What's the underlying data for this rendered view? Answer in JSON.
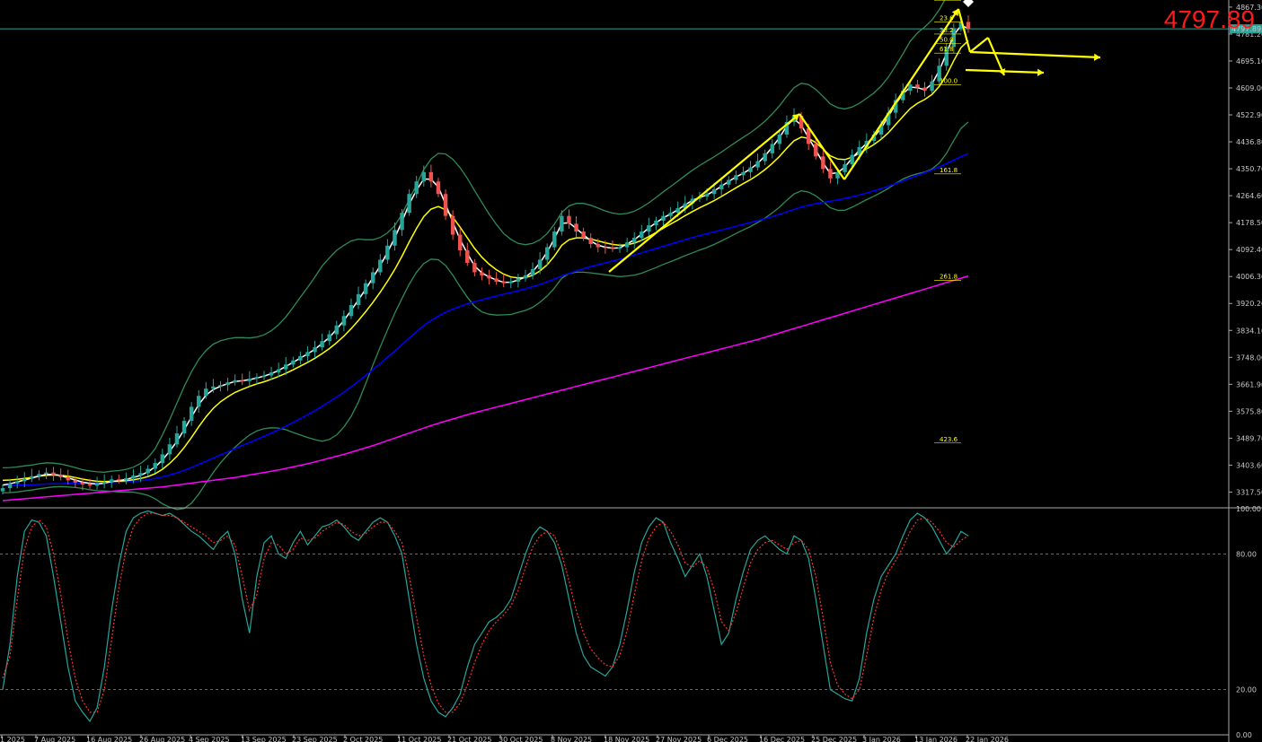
{
  "big_price": "4797.89",
  "current_price_tag": "4797.89",
  "chart_data": [
    {
      "type": "candlestick",
      "ylim": [
        3270,
        4890
      ],
      "y_ticks": [
        "4867.30",
        "4781.20",
        "4695.10",
        "4609.00",
        "4522.90",
        "4436.80",
        "4350.70",
        "4264.60",
        "4178.50",
        "4092.40",
        "4006.30",
        "3920.20",
        "3834.10",
        "3748.00",
        "3661.90",
        "3575.80",
        "3489.70",
        "3403.60",
        "3317.50"
      ],
      "x_ticks": [
        "1 2025",
        "7 Aug 2025",
        "16 Aug 2025",
        "26 Aug 2025",
        "4 Sep 2025",
        "13 Sep 2025",
        "23 Sep 2025",
        "2 Oct 2025",
        "11 Oct 2025",
        "21 Oct 2025",
        "30 Oct 2025",
        "8 Nov 2025",
        "18 Nov 2025",
        "27 Nov 2025",
        "6 Dec 2025",
        "16 Dec 2025",
        "25 Dec 2025",
        "3 Jan 2026",
        "13 Jan 2026",
        "22 Jan 2026"
      ],
      "current_price": 4797.89,
      "close": [
        3330,
        3345,
        3352,
        3360,
        3368,
        3375,
        3380,
        3372,
        3365,
        3355,
        3348,
        3342,
        3338,
        3345,
        3350,
        3358,
        3355,
        3362,
        3370,
        3378,
        3392,
        3410,
        3438,
        3470,
        3505,
        3545,
        3590,
        3625,
        3648,
        3655,
        3660,
        3668,
        3675,
        3672,
        3680,
        3685,
        3690,
        3700,
        3710,
        3725,
        3738,
        3752,
        3765,
        3780,
        3800,
        3822,
        3850,
        3880,
        3915,
        3950,
        3985,
        4020,
        4060,
        4105,
        4155,
        4210,
        4270,
        4310,
        4340,
        4310,
        4270,
        4200,
        4140,
        4090,
        4050,
        4020,
        4010,
        4000,
        3990,
        3985,
        3990,
        4000,
        4010,
        4030,
        4060,
        4100,
        4150,
        4200,
        4175,
        4150,
        4130,
        4110,
        4100,
        4098,
        4095,
        4100,
        4115,
        4130,
        4150,
        4170,
        4185,
        4200,
        4210,
        4225,
        4240,
        4255,
        4262,
        4270,
        4285,
        4300,
        4315,
        4330,
        4340,
        4355,
        4375,
        4400,
        4430,
        4460,
        4500,
        4520,
        4480,
        4430,
        4390,
        4350,
        4320,
        4340,
        4365,
        4395,
        4420,
        4440,
        4460,
        4490,
        4530,
        4570,
        4600,
        4620,
        4610,
        4600,
        4630,
        4680,
        4740,
        4800,
        4820,
        4797.89
      ],
      "series": [
        {
          "name": "",
          "color": "#ffffff",
          "values": [
            3340,
            3344,
            3350,
            3356,
            3362,
            3369,
            3374,
            3374,
            3370,
            3363,
            3356,
            3349,
            3345,
            3343,
            3346,
            3351,
            3354,
            3358,
            3364,
            3371,
            3382,
            3398,
            3420,
            3448,
            3480,
            3517,
            3558,
            3597,
            3627,
            3645,
            3656,
            3664,
            3671,
            3673,
            3677,
            3682,
            3688,
            3696,
            3706,
            3719,
            3732,
            3746,
            3759,
            3774,
            3792,
            3812,
            3838,
            3866,
            3898,
            3932,
            3966,
            4003,
            4041,
            4084,
            4130,
            4182,
            4238,
            4282,
            4318,
            4317,
            4292,
            4238,
            4180,
            4125,
            4080,
            4040,
            4018,
            4005,
            3995,
            3988,
            3988,
            3995,
            4005,
            4022,
            4050,
            4085,
            4128,
            4176,
            4178,
            4160,
            4140,
            4120,
            4106,
            4100,
            4097,
            4098,
            4110,
            4124,
            4142,
            4162,
            4178,
            4194,
            4206,
            4220,
            4235,
            4250,
            4259,
            4267,
            4280,
            4295,
            4310,
            4325,
            4336,
            4350,
            4368,
            4392,
            4420,
            4450,
            4488,
            4510,
            4490,
            4450,
            4410,
            4370,
            4335,
            4338,
            4356,
            4385,
            4410,
            4432,
            4452,
            4480,
            4518,
            4558,
            4590,
            4612,
            4610,
            4603,
            4622,
            4665,
            4720,
            4778,
            4808,
            4800
          ]
        },
        {
          "name": "",
          "color": "#ffff00",
          "values": [
            3355,
            3356,
            3358,
            3361,
            3364,
            3368,
            3371,
            3372,
            3371,
            3368,
            3364,
            3359,
            3355,
            3352,
            3351,
            3352,
            3352,
            3354,
            3357,
            3361,
            3367,
            3376,
            3390,
            3409,
            3432,
            3460,
            3492,
            3526,
            3558,
            3585,
            3606,
            3622,
            3636,
            3646,
            3655,
            3663,
            3670,
            3678,
            3687,
            3697,
            3708,
            3720,
            3732,
            3745,
            3760,
            3776,
            3795,
            3816,
            3840,
            3866,
            3894,
            3924,
            3956,
            3991,
            4029,
            4071,
            4117,
            4160,
            4198,
            4222,
            4230,
            4220,
            4196,
            4164,
            4130,
            4096,
            4068,
            4046,
            4028,
            4014,
            4005,
            4002,
            4003,
            4010,
            4024,
            4044,
            4072,
            4106,
            4124,
            4130,
            4130,
            4126,
            4120,
            4114,
            4109,
            4106,
            4108,
            4113,
            4122,
            4134,
            4147,
            4161,
            4174,
            4187,
            4201,
            4214,
            4226,
            4237,
            4249,
            4262,
            4276,
            4290,
            4303,
            4316,
            4331,
            4348,
            4368,
            4390,
            4416,
            4440,
            4452,
            4448,
            4434,
            4414,
            4392,
            4382,
            4380,
            4388,
            4400,
            4414,
            4428,
            4445,
            4466,
            4492,
            4518,
            4543,
            4560,
            4572,
            4588,
            4614,
            4650,
            4696,
            4738,
            4760
          ]
        },
        {
          "name": "",
          "color": "#0000ff",
          "values": [
            3338,
            3339,
            3339,
            3340,
            3341,
            3342,
            3343,
            3344,
            3344,
            3345,
            3345,
            3346,
            3346,
            3347,
            3347,
            3348,
            3349,
            3350,
            3352,
            3354,
            3357,
            3361,
            3366,
            3372,
            3379,
            3387,
            3396,
            3406,
            3416,
            3426,
            3436,
            3446,
            3456,
            3466,
            3476,
            3486,
            3496,
            3506,
            3517,
            3528,
            3540,
            3552,
            3565,
            3578,
            3592,
            3606,
            3621,
            3637,
            3654,
            3672,
            3690,
            3709,
            3728,
            3748,
            3768,
            3789,
            3810,
            3830,
            3850,
            3866,
            3880,
            3892,
            3902,
            3911,
            3919,
            3926,
            3932,
            3938,
            3944,
            3950,
            3955,
            3961,
            3967,
            3974,
            3981,
            3989,
            3998,
            4008,
            4016,
            4024,
            4031,
            4038,
            4044,
            4050,
            4056,
            4062,
            4068,
            4075,
            4082,
            4089,
            4096,
            4103,
            4110,
            4117,
            4124,
            4131,
            4137,
            4143,
            4149,
            4155,
            4161,
            4167,
            4173,
            4179,
            4185,
            4191,
            4198,
            4205,
            4213,
            4221,
            4228,
            4234,
            4239,
            4243,
            4247,
            4251,
            4256,
            4261,
            4267,
            4273,
            4280,
            4287,
            4295,
            4303,
            4312,
            4321,
            4330,
            4338,
            4347,
            4357,
            4367,
            4378,
            4389,
            4400
          ]
        },
        {
          "name": "",
          "color": "#ff00ff",
          "values": [
            3290,
            3292,
            3294,
            3296,
            3298,
            3300,
            3302,
            3304,
            3306,
            3308,
            3310,
            3312,
            3314,
            3316,
            3318,
            3320,
            3322,
            3324,
            3326,
            3328,
            3330,
            3332,
            3334,
            3337,
            3340,
            3343,
            3346,
            3349,
            3352,
            3355,
            3358,
            3361,
            3364,
            3368,
            3372,
            3376,
            3380,
            3384,
            3388,
            3393,
            3398,
            3403,
            3408,
            3414,
            3420,
            3426,
            3432,
            3438,
            3445,
            3452,
            3459,
            3466,
            3474,
            3482,
            3490,
            3498,
            3506,
            3514,
            3522,
            3530,
            3537,
            3544,
            3551,
            3558,
            3565,
            3571,
            3577,
            3583,
            3589,
            3595,
            3601,
            3607,
            3613,
            3619,
            3625,
            3631,
            3637,
            3643,
            3649,
            3655,
            3661,
            3667,
            3673,
            3679,
            3685,
            3691,
            3697,
            3703,
            3709,
            3715,
            3721,
            3727,
            3733,
            3739,
            3745,
            3751,
            3757,
            3763,
            3769,
            3775,
            3781,
            3787,
            3793,
            3799,
            3805,
            3812,
            3819,
            3826,
            3833,
            3840,
            3847,
            3854,
            3861,
            3868,
            3875,
            3882,
            3889,
            3896,
            3903,
            3910,
            3917,
            3924,
            3931,
            3938,
            3945,
            3952,
            3959,
            3966,
            3973,
            3980,
            3987,
            3994,
            4001,
            4008
          ]
        }
      ],
      "bollinger_width": [
        40,
        40,
        40,
        40,
        40,
        40,
        40,
        38,
        36,
        34,
        32,
        30,
        30,
        30,
        30,
        32,
        34,
        36,
        40,
        48,
        60,
        80,
        110,
        140,
        170,
        195,
        210,
        215,
        212,
        205,
        195,
        185,
        175,
        165,
        155,
        150,
        150,
        155,
        165,
        180,
        200,
        220,
        240,
        260,
        280,
        290,
        295,
        290,
        280,
        260,
        230,
        200,
        175,
        155,
        140,
        135,
        135,
        140,
        150,
        160,
        170,
        178,
        185,
        190,
        190,
        185,
        175,
        160,
        145,
        130,
        120,
        110,
        105,
        102,
        100,
        100,
        102,
        105,
        108,
        110,
        110,
        108,
        105,
        102,
        100,
        100,
        100,
        102,
        105,
        108,
        112,
        116,
        120,
        124,
        128,
        132,
        135,
        138,
        140,
        142,
        144,
        146,
        148,
        150,
        152,
        155,
        158,
        162,
        166,
        170,
        172,
        172,
        170,
        168,
        166,
        164,
        162,
        160,
        160,
        162,
        165,
        170,
        178,
        188,
        200,
        215,
        225,
        232,
        238,
        245,
        250,
        255,
        258,
        260
      ],
      "fib_levels": [
        "0.0",
        "23.6",
        "38.2",
        "50.0",
        "61.8",
        "100.0",
        "161.8",
        "261.8",
        "423.6"
      ],
      "fib_values": [
        4895,
        4825,
        4787,
        4757,
        4726,
        4625,
        4340,
        4000,
        3480
      ]
    },
    {
      "type": "line",
      "title": "",
      "ylim": [
        0,
        100
      ],
      "y_ticks": [
        "100.00",
        "80.00",
        "20.00",
        "0.00"
      ],
      "levels": [
        80,
        20
      ],
      "series": [
        {
          "name": "",
          "color": "#26a69a",
          "values": [
            20,
            40,
            70,
            90,
            95,
            94,
            88,
            70,
            50,
            30,
            15,
            10,
            6,
            12,
            30,
            55,
            75,
            90,
            96,
            98,
            99,
            98,
            97,
            98,
            96,
            93,
            90,
            88,
            85,
            82,
            87,
            90,
            80,
            60,
            45,
            70,
            85,
            88,
            80,
            78,
            85,
            90,
            84,
            88,
            92,
            93,
            95,
            92,
            88,
            86,
            90,
            94,
            96,
            94,
            88,
            80,
            60,
            40,
            25,
            15,
            10,
            8,
            12,
            18,
            30,
            40,
            45,
            50,
            52,
            55,
            60,
            70,
            80,
            88,
            92,
            90,
            85,
            75,
            60,
            45,
            35,
            30,
            28,
            26,
            30,
            40,
            55,
            72,
            85,
            92,
            96,
            94,
            85,
            78,
            70,
            75,
            80,
            70,
            55,
            40,
            45,
            60,
            72,
            82,
            86,
            88,
            85,
            82,
            80,
            88,
            86,
            78,
            60,
            40,
            20,
            18,
            16,
            15,
            25,
            45,
            60,
            70,
            75,
            80,
            88,
            95,
            98,
            96,
            92,
            86,
            80,
            84,
            90,
            88
          ]
        },
        {
          "name": "",
          "color": "#ff3333",
          "values": [
            25,
            35,
            60,
            82,
            92,
            95,
            92,
            80,
            62,
            42,
            25,
            15,
            10,
            10,
            20,
            42,
            65,
            82,
            92,
            96,
            98,
            98,
            97,
            97,
            96,
            94,
            92,
            90,
            88,
            85,
            86,
            88,
            84,
            70,
            55,
            62,
            78,
            85,
            84,
            80,
            82,
            87,
            86,
            87,
            90,
            92,
            94,
            93,
            90,
            88,
            89,
            92,
            94,
            94,
            90,
            85,
            70,
            52,
            35,
            22,
            14,
            10,
            10,
            14,
            22,
            32,
            40,
            46,
            50,
            53,
            57,
            64,
            74,
            83,
            88,
            90,
            88,
            80,
            68,
            55,
            45,
            38,
            34,
            31,
            30,
            35,
            46,
            62,
            77,
            87,
            92,
            94,
            90,
            84,
            76,
            74,
            77,
            74,
            64,
            50,
            46,
            54,
            65,
            76,
            82,
            85,
            86,
            84,
            82,
            85,
            86,
            82,
            70,
            52,
            32,
            22,
            18,
            16,
            20,
            35,
            52,
            64,
            72,
            77,
            83,
            90,
            95,
            96,
            94,
            90,
            85,
            83,
            86,
            88
          ]
        }
      ]
    }
  ]
}
